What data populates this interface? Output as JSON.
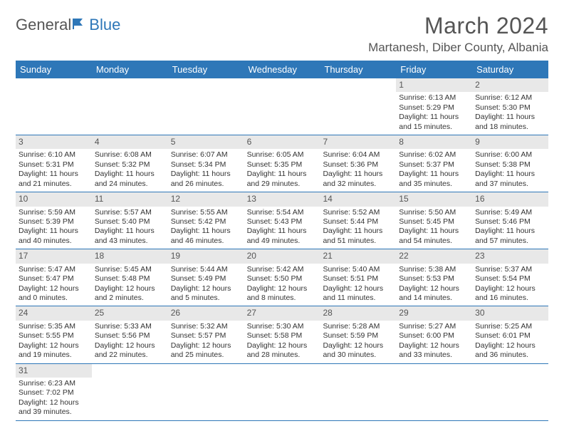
{
  "logo": {
    "general": "General",
    "blue": "Blue"
  },
  "header": {
    "month_title": "March 2024",
    "location": "Martanesh, Diber County, Albania"
  },
  "colors": {
    "header_bg": "#2e77b8",
    "header_text": "#ffffff",
    "daynum_bg": "#e8e8e8",
    "border": "#2e77b8",
    "body_text": "#333333",
    "title_text": "#555555",
    "page_bg": "#ffffff"
  },
  "day_headers": [
    "Sunday",
    "Monday",
    "Tuesday",
    "Wednesday",
    "Thursday",
    "Friday",
    "Saturday"
  ],
  "weeks": [
    [
      null,
      null,
      null,
      null,
      null,
      {
        "n": "1",
        "sunrise": "Sunrise: 6:13 AM",
        "sunset": "Sunset: 5:29 PM",
        "daylight1": "Daylight: 11 hours",
        "daylight2": "and 15 minutes."
      },
      {
        "n": "2",
        "sunrise": "Sunrise: 6:12 AM",
        "sunset": "Sunset: 5:30 PM",
        "daylight1": "Daylight: 11 hours",
        "daylight2": "and 18 minutes."
      }
    ],
    [
      {
        "n": "3",
        "sunrise": "Sunrise: 6:10 AM",
        "sunset": "Sunset: 5:31 PM",
        "daylight1": "Daylight: 11 hours",
        "daylight2": "and 21 minutes."
      },
      {
        "n": "4",
        "sunrise": "Sunrise: 6:08 AM",
        "sunset": "Sunset: 5:32 PM",
        "daylight1": "Daylight: 11 hours",
        "daylight2": "and 24 minutes."
      },
      {
        "n": "5",
        "sunrise": "Sunrise: 6:07 AM",
        "sunset": "Sunset: 5:34 PM",
        "daylight1": "Daylight: 11 hours",
        "daylight2": "and 26 minutes."
      },
      {
        "n": "6",
        "sunrise": "Sunrise: 6:05 AM",
        "sunset": "Sunset: 5:35 PM",
        "daylight1": "Daylight: 11 hours",
        "daylight2": "and 29 minutes."
      },
      {
        "n": "7",
        "sunrise": "Sunrise: 6:04 AM",
        "sunset": "Sunset: 5:36 PM",
        "daylight1": "Daylight: 11 hours",
        "daylight2": "and 32 minutes."
      },
      {
        "n": "8",
        "sunrise": "Sunrise: 6:02 AM",
        "sunset": "Sunset: 5:37 PM",
        "daylight1": "Daylight: 11 hours",
        "daylight2": "and 35 minutes."
      },
      {
        "n": "9",
        "sunrise": "Sunrise: 6:00 AM",
        "sunset": "Sunset: 5:38 PM",
        "daylight1": "Daylight: 11 hours",
        "daylight2": "and 37 minutes."
      }
    ],
    [
      {
        "n": "10",
        "sunrise": "Sunrise: 5:59 AM",
        "sunset": "Sunset: 5:39 PM",
        "daylight1": "Daylight: 11 hours",
        "daylight2": "and 40 minutes."
      },
      {
        "n": "11",
        "sunrise": "Sunrise: 5:57 AM",
        "sunset": "Sunset: 5:40 PM",
        "daylight1": "Daylight: 11 hours",
        "daylight2": "and 43 minutes."
      },
      {
        "n": "12",
        "sunrise": "Sunrise: 5:55 AM",
        "sunset": "Sunset: 5:42 PM",
        "daylight1": "Daylight: 11 hours",
        "daylight2": "and 46 minutes."
      },
      {
        "n": "13",
        "sunrise": "Sunrise: 5:54 AM",
        "sunset": "Sunset: 5:43 PM",
        "daylight1": "Daylight: 11 hours",
        "daylight2": "and 49 minutes."
      },
      {
        "n": "14",
        "sunrise": "Sunrise: 5:52 AM",
        "sunset": "Sunset: 5:44 PM",
        "daylight1": "Daylight: 11 hours",
        "daylight2": "and 51 minutes."
      },
      {
        "n": "15",
        "sunrise": "Sunrise: 5:50 AM",
        "sunset": "Sunset: 5:45 PM",
        "daylight1": "Daylight: 11 hours",
        "daylight2": "and 54 minutes."
      },
      {
        "n": "16",
        "sunrise": "Sunrise: 5:49 AM",
        "sunset": "Sunset: 5:46 PM",
        "daylight1": "Daylight: 11 hours",
        "daylight2": "and 57 minutes."
      }
    ],
    [
      {
        "n": "17",
        "sunrise": "Sunrise: 5:47 AM",
        "sunset": "Sunset: 5:47 PM",
        "daylight1": "Daylight: 12 hours",
        "daylight2": "and 0 minutes."
      },
      {
        "n": "18",
        "sunrise": "Sunrise: 5:45 AM",
        "sunset": "Sunset: 5:48 PM",
        "daylight1": "Daylight: 12 hours",
        "daylight2": "and 2 minutes."
      },
      {
        "n": "19",
        "sunrise": "Sunrise: 5:44 AM",
        "sunset": "Sunset: 5:49 PM",
        "daylight1": "Daylight: 12 hours",
        "daylight2": "and 5 minutes."
      },
      {
        "n": "20",
        "sunrise": "Sunrise: 5:42 AM",
        "sunset": "Sunset: 5:50 PM",
        "daylight1": "Daylight: 12 hours",
        "daylight2": "and 8 minutes."
      },
      {
        "n": "21",
        "sunrise": "Sunrise: 5:40 AM",
        "sunset": "Sunset: 5:51 PM",
        "daylight1": "Daylight: 12 hours",
        "daylight2": "and 11 minutes."
      },
      {
        "n": "22",
        "sunrise": "Sunrise: 5:38 AM",
        "sunset": "Sunset: 5:53 PM",
        "daylight1": "Daylight: 12 hours",
        "daylight2": "and 14 minutes."
      },
      {
        "n": "23",
        "sunrise": "Sunrise: 5:37 AM",
        "sunset": "Sunset: 5:54 PM",
        "daylight1": "Daylight: 12 hours",
        "daylight2": "and 16 minutes."
      }
    ],
    [
      {
        "n": "24",
        "sunrise": "Sunrise: 5:35 AM",
        "sunset": "Sunset: 5:55 PM",
        "daylight1": "Daylight: 12 hours",
        "daylight2": "and 19 minutes."
      },
      {
        "n": "25",
        "sunrise": "Sunrise: 5:33 AM",
        "sunset": "Sunset: 5:56 PM",
        "daylight1": "Daylight: 12 hours",
        "daylight2": "and 22 minutes."
      },
      {
        "n": "26",
        "sunrise": "Sunrise: 5:32 AM",
        "sunset": "Sunset: 5:57 PM",
        "daylight1": "Daylight: 12 hours",
        "daylight2": "and 25 minutes."
      },
      {
        "n": "27",
        "sunrise": "Sunrise: 5:30 AM",
        "sunset": "Sunset: 5:58 PM",
        "daylight1": "Daylight: 12 hours",
        "daylight2": "and 28 minutes."
      },
      {
        "n": "28",
        "sunrise": "Sunrise: 5:28 AM",
        "sunset": "Sunset: 5:59 PM",
        "daylight1": "Daylight: 12 hours",
        "daylight2": "and 30 minutes."
      },
      {
        "n": "29",
        "sunrise": "Sunrise: 5:27 AM",
        "sunset": "Sunset: 6:00 PM",
        "daylight1": "Daylight: 12 hours",
        "daylight2": "and 33 minutes."
      },
      {
        "n": "30",
        "sunrise": "Sunrise: 5:25 AM",
        "sunset": "Sunset: 6:01 PM",
        "daylight1": "Daylight: 12 hours",
        "daylight2": "and 36 minutes."
      }
    ],
    [
      {
        "n": "31",
        "sunrise": "Sunrise: 6:23 AM",
        "sunset": "Sunset: 7:02 PM",
        "daylight1": "Daylight: 12 hours",
        "daylight2": "and 39 minutes."
      },
      null,
      null,
      null,
      null,
      null,
      null
    ]
  ]
}
